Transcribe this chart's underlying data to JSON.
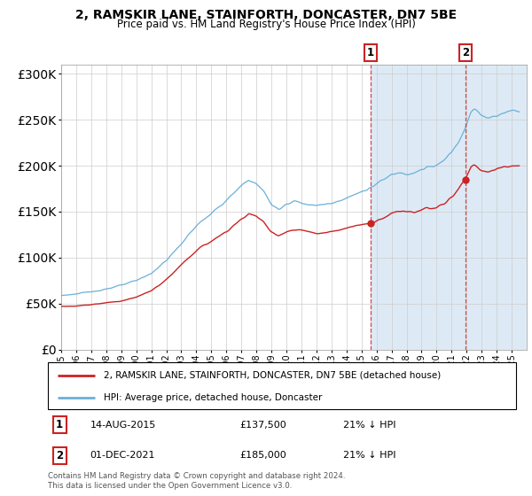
{
  "title": "2, RAMSKIR LANE, STAINFORTH, DONCASTER, DN7 5BE",
  "subtitle": "Price paid vs. HM Land Registry's House Price Index (HPI)",
  "hpi_color": "#6ab0d8",
  "price_color": "#cc2222",
  "marker1_year": 2015.62,
  "marker2_year": 2021.92,
  "marker1_label": "14-AUG-2015",
  "marker1_price": "£137,500",
  "marker1_pct": "21% ↓ HPI",
  "marker2_label": "01-DEC-2021",
  "marker2_price": "£185,000",
  "marker2_pct": "21% ↓ HPI",
  "legend_property": "2, RAMSKIR LANE, STAINFORTH, DONCASTER, DN7 5BE (detached house)",
  "legend_hpi": "HPI: Average price, detached house, Doncaster",
  "footer": "Contains HM Land Registry data © Crown copyright and database right 2024.\nThis data is licensed under the Open Government Licence v3.0.",
  "ylim": [
    0,
    310000
  ],
  "yticks": [
    0,
    50000,
    100000,
    150000,
    200000,
    250000,
    300000
  ],
  "shaded_color": "#ddeaf5",
  "hpi_points": [
    [
      1995.0,
      59000
    ],
    [
      1996.0,
      60500
    ],
    [
      1997.0,
      63000
    ],
    [
      1998.0,
      66000
    ],
    [
      1999.0,
      70000
    ],
    [
      2000.0,
      75000
    ],
    [
      2001.0,
      83000
    ],
    [
      2002.0,
      97000
    ],
    [
      2003.0,
      115000
    ],
    [
      2004.0,
      135000
    ],
    [
      2005.0,
      148000
    ],
    [
      2006.0,
      162000
    ],
    [
      2007.0,
      178000
    ],
    [
      2007.5,
      185000
    ],
    [
      2008.0,
      180000
    ],
    [
      2008.5,
      172000
    ],
    [
      2009.0,
      158000
    ],
    [
      2009.5,
      152000
    ],
    [
      2010.0,
      158000
    ],
    [
      2010.5,
      162000
    ],
    [
      2011.0,
      160000
    ],
    [
      2011.5,
      157000
    ],
    [
      2012.0,
      157000
    ],
    [
      2012.5,
      158000
    ],
    [
      2013.0,
      159000
    ],
    [
      2013.5,
      162000
    ],
    [
      2014.0,
      165000
    ],
    [
      2014.5,
      168000
    ],
    [
      2015.0,
      172000
    ],
    [
      2015.5,
      175000
    ],
    [
      2016.0,
      180000
    ],
    [
      2016.5,
      185000
    ],
    [
      2017.0,
      190000
    ],
    [
      2017.5,
      193000
    ],
    [
      2018.0,
      192000
    ],
    [
      2018.5,
      193000
    ],
    [
      2019.0,
      196000
    ],
    [
      2019.5,
      198000
    ],
    [
      2020.0,
      200000
    ],
    [
      2020.5,
      205000
    ],
    [
      2021.0,
      215000
    ],
    [
      2021.5,
      228000
    ],
    [
      2022.0,
      245000
    ],
    [
      2022.3,
      258000
    ],
    [
      2022.5,
      262000
    ],
    [
      2022.8,
      258000
    ],
    [
      2023.0,
      255000
    ],
    [
      2023.5,
      252000
    ],
    [
      2024.0,
      255000
    ],
    [
      2024.5,
      258000
    ],
    [
      2025.0,
      260000
    ]
  ],
  "price_points": [
    [
      1995.0,
      47000
    ],
    [
      1996.0,
      47500
    ],
    [
      1997.0,
      49000
    ],
    [
      1998.0,
      51000
    ],
    [
      1999.0,
      53000
    ],
    [
      2000.0,
      57000
    ],
    [
      2001.0,
      64000
    ],
    [
      2002.0,
      76000
    ],
    [
      2003.0,
      92000
    ],
    [
      2004.0,
      108000
    ],
    [
      2005.0,
      118000
    ],
    [
      2006.0,
      128000
    ],
    [
      2007.0,
      142000
    ],
    [
      2007.5,
      148000
    ],
    [
      2008.0,
      145000
    ],
    [
      2008.5,
      138000
    ],
    [
      2009.0,
      128000
    ],
    [
      2009.5,
      124000
    ],
    [
      2010.0,
      128000
    ],
    [
      2010.5,
      130000
    ],
    [
      2011.0,
      130000
    ],
    [
      2011.5,
      128000
    ],
    [
      2012.0,
      126000
    ],
    [
      2012.5,
      127000
    ],
    [
      2013.0,
      128000
    ],
    [
      2013.5,
      130000
    ],
    [
      2014.0,
      132000
    ],
    [
      2014.5,
      134000
    ],
    [
      2015.0,
      136000
    ],
    [
      2015.5,
      137000
    ],
    [
      2015.62,
      137500
    ],
    [
      2016.0,
      140000
    ],
    [
      2016.5,
      144000
    ],
    [
      2017.0,
      148000
    ],
    [
      2017.5,
      151000
    ],
    [
      2018.0,
      150000
    ],
    [
      2018.5,
      150000
    ],
    [
      2019.0,
      152000
    ],
    [
      2019.5,
      153000
    ],
    [
      2020.0,
      154000
    ],
    [
      2020.5,
      158000
    ],
    [
      2021.0,
      166000
    ],
    [
      2021.5,
      176000
    ],
    [
      2021.92,
      185000
    ],
    [
      2022.0,
      188000
    ],
    [
      2022.3,
      198000
    ],
    [
      2022.5,
      200000
    ],
    [
      2022.8,
      197000
    ],
    [
      2023.0,
      195000
    ],
    [
      2023.5,
      193000
    ],
    [
      2024.0,
      196000
    ],
    [
      2024.5,
      198000
    ],
    [
      2025.0,
      200000
    ]
  ]
}
